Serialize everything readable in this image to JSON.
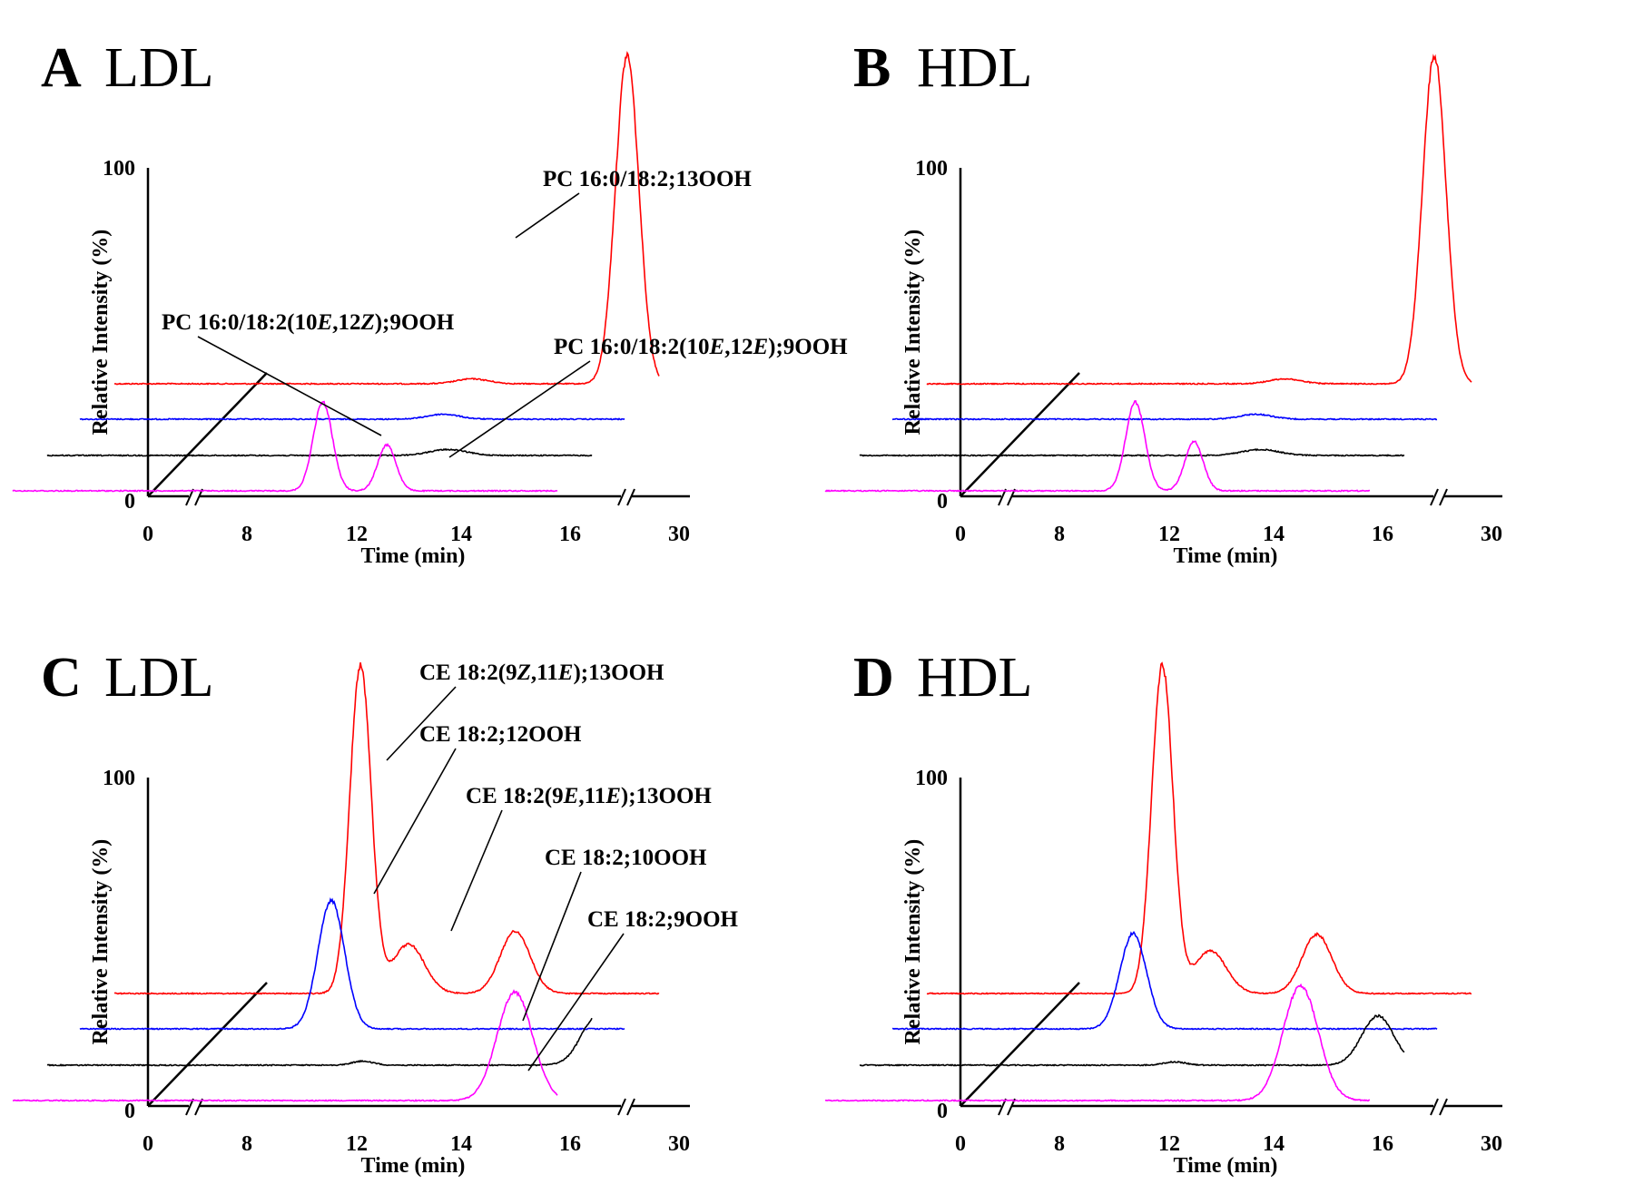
{
  "figure": {
    "panels": [
      {
        "letter": "A",
        "title": "LDL",
        "annotations": [
          {
            "text": "PC 16:0/18:2;13OOH",
            "trace": 0,
            "time": 14.8
          },
          {
            "text": "PC 16:0/18:2(10E,12Z);9OOH",
            "trace": 3,
            "time": 13.0
          },
          {
            "text": "PC 16:0/18:2(10E,12E);9OOH",
            "trace": 2,
            "time": 13.7
          }
        ]
      },
      {
        "letter": "B",
        "title": "HDL",
        "annotations": []
      },
      {
        "letter": "C",
        "title": "LDL",
        "annotations": [
          {
            "text": "CE 18:2(9Z,11E);13OOH",
            "trace": 0,
            "time": 12.5
          },
          {
            "text": "CE 18:2;12OOH",
            "trace": 1,
            "time": 12.4
          },
          {
            "text": "CE 18:2(9E,11E);13OOH",
            "trace": 0,
            "time": 13.8
          },
          {
            "text": "CE 18:2;10OOH",
            "trace": 2,
            "time": 15.2
          },
          {
            "text": "CE 18:2;9OOH",
            "trace": 3,
            "time": 15.3
          }
        ]
      },
      {
        "letter": "D",
        "title": "HDL",
        "annotations": []
      }
    ]
  },
  "chart_data": [
    {
      "type": "line",
      "panel": "A",
      "title": "LDL",
      "xlabel": "Time (min)",
      "ylabel": "Relative Intensity (%)",
      "x_ticks": [
        "0",
        "8",
        "12",
        "14",
        "16",
        "30"
      ],
      "y_ticks": [
        "0",
        "100"
      ],
      "ylim": [
        0,
        100
      ],
      "x_axis_breaks": [
        "0-8",
        "16-30"
      ],
      "series": [
        {
          "color": "#ff0000",
          "peaks": [
            {
              "time": 14.85,
              "height": 100,
              "width": 0.22
            },
            {
              "time": 13.4,
              "height": 1.5,
              "width": 0.3
            }
          ]
        },
        {
          "color": "#0000ff",
          "peaks": [
            {
              "time": 13.45,
              "height": 1.5,
              "width": 0.3
            }
          ]
        },
        {
          "color": "#000000",
          "peaks": [
            {
              "time": 13.8,
              "height": 1.8,
              "width": 0.35
            }
          ]
        },
        {
          "color": "#ff00ff",
          "peaks": [
            {
              "time": 12.95,
              "height": 27,
              "width": 0.18
            },
            {
              "time": 13.55,
              "height": 14,
              "width": 0.17
            }
          ]
        }
      ]
    },
    {
      "type": "line",
      "panel": "B",
      "title": "HDL",
      "xlabel": "Time (min)",
      "ylabel": "Relative Intensity (%)",
      "x_ticks": [
        "0",
        "8",
        "12",
        "14",
        "16",
        "30"
      ],
      "y_ticks": [
        "0",
        "100"
      ],
      "ylim": [
        0,
        100
      ],
      "x_axis_breaks": [
        "0-8",
        "16-30"
      ],
      "series": [
        {
          "color": "#ff0000",
          "peaks": [
            {
              "time": 14.8,
              "height": 100,
              "width": 0.22
            },
            {
              "time": 13.4,
              "height": 1.5,
              "width": 0.3
            }
          ]
        },
        {
          "color": "#0000ff",
          "peaks": [
            {
              "time": 13.45,
              "height": 1.5,
              "width": 0.3
            }
          ]
        },
        {
          "color": "#000000",
          "peaks": [
            {
              "time": 13.8,
              "height": 1.8,
              "width": 0.35
            }
          ]
        },
        {
          "color": "#ff00ff",
          "peaks": [
            {
              "time": 12.95,
              "height": 27,
              "width": 0.18
            },
            {
              "time": 13.5,
              "height": 15,
              "width": 0.17
            }
          ]
        }
      ]
    },
    {
      "type": "line",
      "panel": "C",
      "title": "LDL",
      "xlabel": "Time (min)",
      "ylabel": "Relative Intensity (%)",
      "x_ticks": [
        "0",
        "8",
        "12",
        "14",
        "16",
        "30"
      ],
      "y_ticks": [
        "0",
        "100"
      ],
      "ylim": [
        0,
        100
      ],
      "x_axis_breaks": [
        "0-8",
        "16-30"
      ],
      "series": [
        {
          "color": "#ff0000",
          "peaks": [
            {
              "time": 12.35,
              "height": 100,
              "width": 0.2
            },
            {
              "time": 12.8,
              "height": 15,
              "width": 0.3
            },
            {
              "time": 13.8,
              "height": 19,
              "width": 0.28
            }
          ]
        },
        {
          "color": "#0000ff",
          "peaks": [
            {
              "time": 12.4,
              "height": 39,
              "width": 0.25
            },
            {
              "time": 16.0,
              "height": 1.5,
              "width": 0.5
            }
          ]
        },
        {
          "color": "#000000",
          "peaks": [
            {
              "time": 15.2,
              "height": 15,
              "width": 0.3
            },
            {
              "time": 13.0,
              "height": 1.2,
              "width": 0.2
            }
          ]
        },
        {
          "color": "#ff00ff",
          "peaks": [
            {
              "time": 14.75,
              "height": 33,
              "width": 0.33
            }
          ]
        }
      ]
    },
    {
      "type": "line",
      "panel": "D",
      "title": "HDL",
      "xlabel": "Time (min)",
      "ylabel": "Relative Intensity (%)",
      "x_ticks": [
        "0",
        "8",
        "12",
        "14",
        "16",
        "30"
      ],
      "y_ticks": [
        "0",
        "100"
      ],
      "ylim": [
        0,
        100
      ],
      "x_axis_breaks": [
        "0-8",
        "16-30"
      ],
      "series": [
        {
          "color": "#ff0000",
          "peaks": [
            {
              "time": 12.25,
              "height": 100,
              "width": 0.2
            },
            {
              "time": 12.7,
              "height": 13,
              "width": 0.3
            },
            {
              "time": 13.7,
              "height": 18,
              "width": 0.28
            }
          ]
        },
        {
          "color": "#0000ff",
          "peaks": [
            {
              "time": 12.3,
              "height": 29,
              "width": 0.25
            },
            {
              "time": 15.8,
              "height": 1.5,
              "width": 0.5
            }
          ]
        },
        {
          "color": "#000000",
          "peaks": [
            {
              "time": 14.9,
              "height": 15,
              "width": 0.3
            },
            {
              "time": 13.0,
              "height": 1.0,
              "width": 0.2
            }
          ]
        },
        {
          "color": "#ff00ff",
          "peaks": [
            {
              "time": 14.5,
              "height": 35,
              "width": 0.33
            }
          ]
        }
      ]
    }
  ]
}
